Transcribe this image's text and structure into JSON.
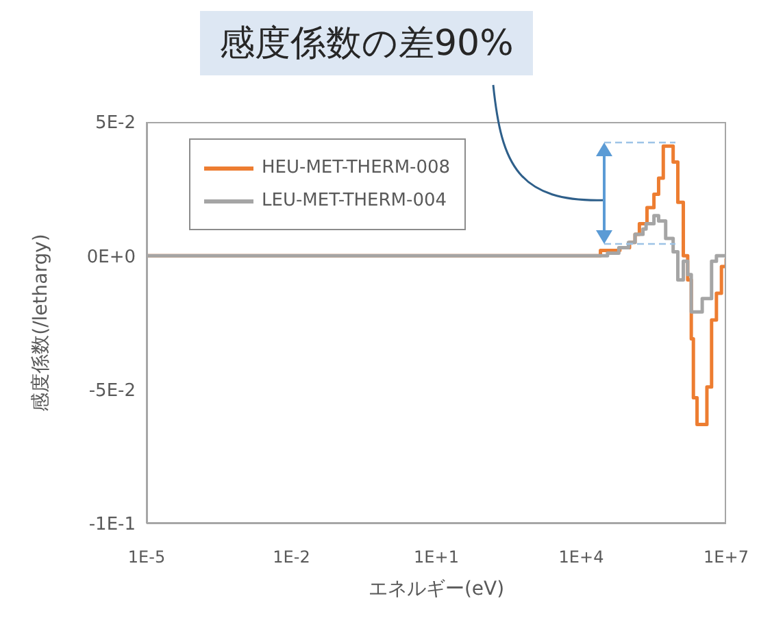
{
  "chart_data": {
    "type": "step",
    "xlabel": "エネルギー(eV)",
    "ylabel": "感度係数(/lethargy)",
    "annotations": [
      "感度係数の差90%"
    ],
    "log": "x",
    "xlim": [
      1e-05,
      10000000.0
    ],
    "xticks": [
      {
        "value": 1e-05,
        "label": "1E-5"
      },
      {
        "value": 0.01,
        "label": "1E-2"
      },
      {
        "value": 10,
        "label": "1E+1"
      },
      {
        "value": 10000,
        "label": "1E+4"
      },
      {
        "value": 10000000,
        "label": "1E+7"
      }
    ],
    "ylim": [
      -0.1,
      0.05
    ],
    "yticks": [
      {
        "value": -0.1,
        "label": "-1E-1"
      },
      {
        "value": -0.05,
        "label": "-5E-2"
      },
      {
        "value": 0,
        "label": "0E+0"
      },
      {
        "value": 0.05,
        "label": "5E-2"
      }
    ],
    "grid": false,
    "legend": "top left",
    "marker": "none",
    "line_style": "solid",
    "series": [
      {
        "name": "HEU-MET-THERM-008",
        "color": "#ed7d31",
        "x": [
          1e-05,
          8000,
          25000,
          63000,
          100000,
          130000,
          160000,
          230000,
          320000,
          400000,
          500000,
          630000,
          800000,
          1000000,
          1300000,
          1600000,
          1900000,
          2100000,
          2500000,
          3500000,
          4000000,
          5000000,
          6300000,
          8000000,
          10000000
        ],
        "values": [
          0,
          0,
          0.002,
          0.003,
          0.005,
          0.008,
          0.012,
          0.018,
          0.023,
          0.029,
          0.041,
          0.041,
          0.035,
          0.02,
          0,
          -0.009,
          -0.031,
          -0.053,
          -0.063,
          -0.063,
          -0.049,
          -0.024,
          -0.014,
          -0.004,
          -0.001
        ]
      },
      {
        "name": "LEU-MET-THERM-004",
        "color": "#a5a5a5",
        "x": [
          1e-05,
          35000,
          60000,
          95000,
          130000,
          190000,
          220000,
          320000,
          400000,
          560000,
          800000,
          1000000,
          1300000,
          1600000,
          1900000,
          3200000,
          5000000,
          6300000,
          10000000
        ],
        "values": [
          0,
          0.001,
          0.003,
          0.005,
          0.008,
          0.01,
          0.012,
          0.015,
          0.013,
          0.0065,
          0.0015,
          -0.009,
          -0.002,
          -0.007,
          -0.021,
          -0.016,
          -0.002,
          0,
          0
        ]
      }
    ]
  }
}
